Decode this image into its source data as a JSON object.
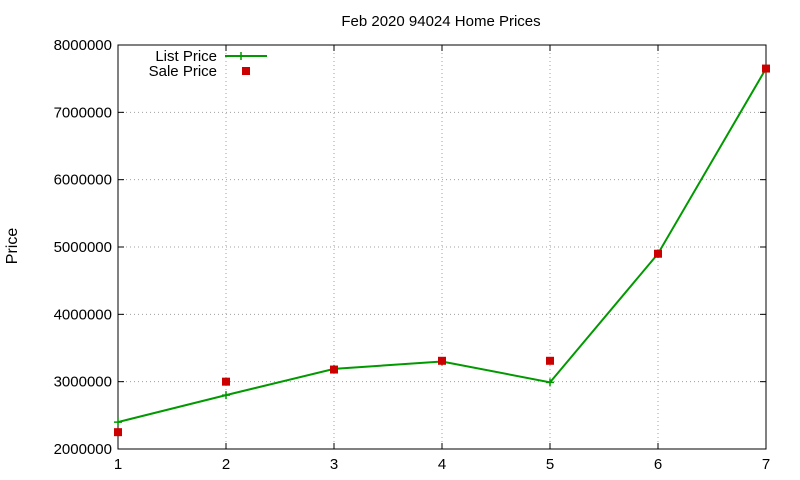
{
  "chart_data": {
    "type": "line",
    "title": "Feb 2020 94024 Home Prices",
    "xlabel": "",
    "ylabel": "Price",
    "x": [
      1,
      2,
      3,
      4,
      5,
      6,
      7
    ],
    "xlim": [
      1,
      7
    ],
    "ylim": [
      2000000,
      8000000
    ],
    "xticks": [
      "1",
      "2",
      "3",
      "4",
      "5",
      "6",
      "7"
    ],
    "yticks": [
      "2000000",
      "3000000",
      "4000000",
      "5000000",
      "6000000",
      "7000000",
      "8000000"
    ],
    "grid": true,
    "legend_position": "top-left",
    "series": [
      {
        "name": "List Price",
        "style": "line-with-plus-markers",
        "color": "#009900",
        "values": [
          2400000,
          2800000,
          3190000,
          3300000,
          2990000,
          4900000,
          7650000
        ]
      },
      {
        "name": "Sale Price",
        "style": "square-markers",
        "color": "#cc0000",
        "values": [
          2250000,
          3000000,
          3180000,
          3310000,
          3310000,
          4900000,
          7650000
        ]
      }
    ]
  }
}
